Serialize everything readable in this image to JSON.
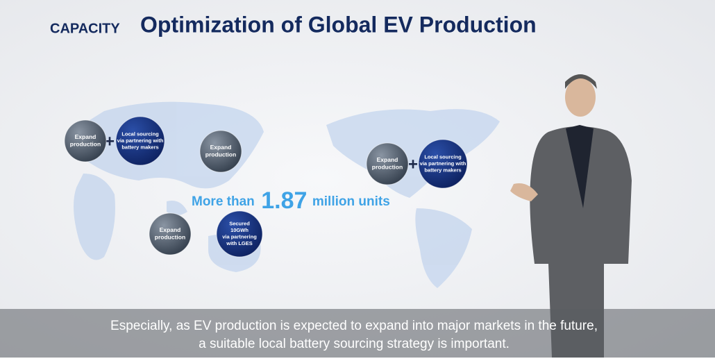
{
  "header": {
    "label": "CAPACITY",
    "title": "Optimization of Global EV Production"
  },
  "bubbles": [
    {
      "lines": [
        "Expand",
        "production"
      ],
      "kind": "gray"
    },
    {
      "lines": [
        "Local sourcing",
        "via partnering with",
        "battery makers"
      ],
      "kind": "navy"
    },
    {
      "lines": [
        "Expand",
        "production"
      ],
      "kind": "gray"
    },
    {
      "lines": [
        "Expand",
        "production"
      ],
      "kind": "gray"
    },
    {
      "lines": [
        "Secured",
        "10GWh",
        "via partnering",
        "with LGES"
      ],
      "kind": "navy"
    },
    {
      "lines": [
        "Expand",
        "production"
      ],
      "kind": "gray"
    },
    {
      "lines": [
        "Local sourcing",
        "via partnering with",
        "battery makers"
      ],
      "kind": "navy"
    }
  ],
  "highlight": {
    "prefix": "More than",
    "number": "1.87",
    "suffix": "million units"
  },
  "caption": [
    "Especially, as EV production is expected to expand into major markets in the future,",
    "a suitable local battery sourcing strategy is important."
  ]
}
